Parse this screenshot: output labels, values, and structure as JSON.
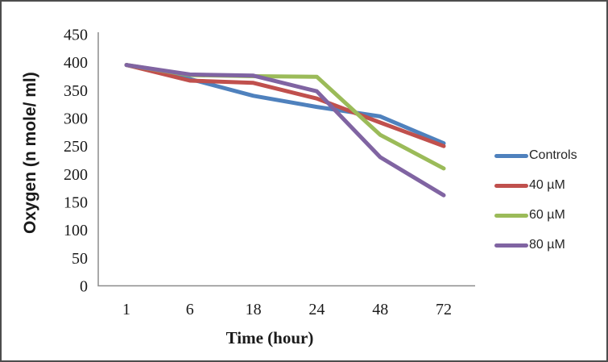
{
  "figure": {
    "background": "#ffffff",
    "border_color": "#4d4d4d"
  },
  "chart_data": {
    "type": "line",
    "title": "",
    "xlabel": "Time (hour)",
    "ylabel": "Oxygen (n mole/ ml)",
    "categories": [
      "1",
      "6",
      "18",
      "24",
      "48",
      "72"
    ],
    "series": [
      {
        "name": "Controls",
        "color": "#4F81BD",
        "values": [
          395,
          370,
          340,
          320,
          303,
          255
        ]
      },
      {
        "name": "40 µM",
        "color": "#C0504D",
        "values": [
          395,
          367,
          363,
          335,
          292,
          250
        ]
      },
      {
        "name": "60 µM",
        "color": "#9BBB59",
        "values": [
          395,
          377,
          375,
          374,
          270,
          210
        ]
      },
      {
        "name": "80 µM",
        "color": "#8064A2",
        "values": [
          395,
          378,
          376,
          348,
          230,
          162
        ]
      }
    ],
    "ylim": [
      0,
      450
    ],
    "ytick_step": 50,
    "grid": false,
    "legend_position": "right",
    "axis_color": "#8C8C8C",
    "text_color": "#1a1a1a",
    "line_width": 5
  }
}
